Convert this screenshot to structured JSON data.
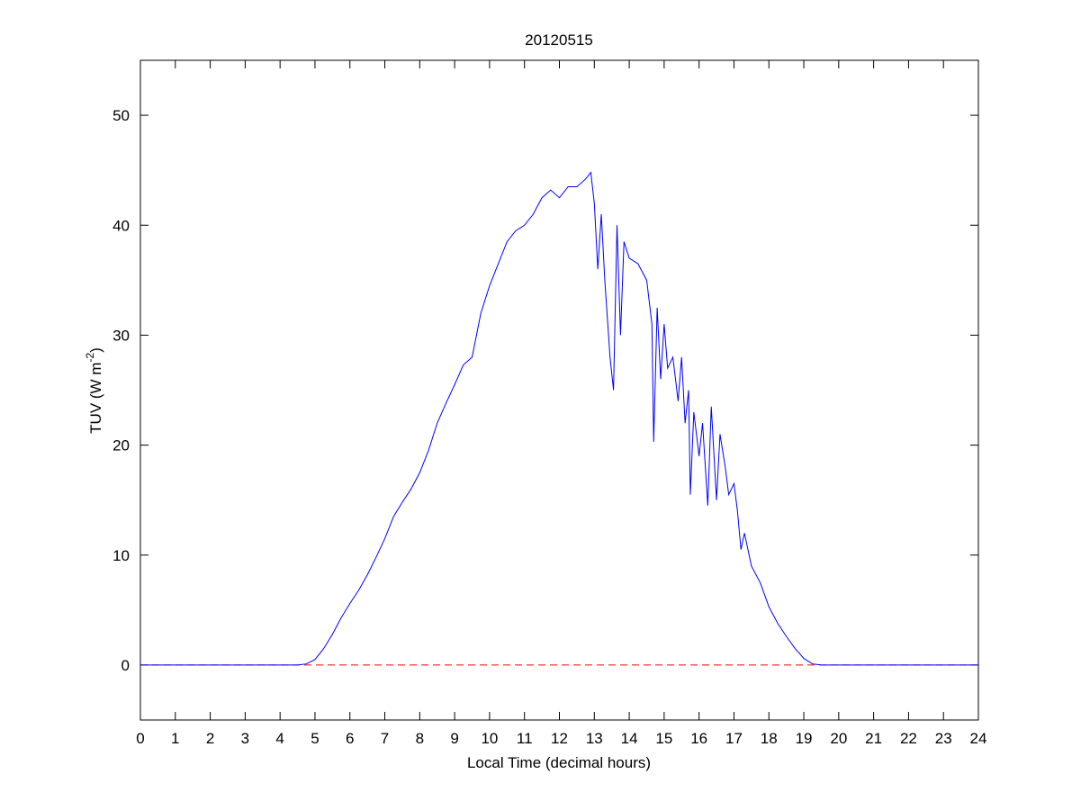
{
  "chart_data": {
    "type": "line",
    "title": "20120515",
    "x_label": "Local Time (decimal hours)",
    "y_label": [
      "TUV (W m",
      "-2",
      ")"
    ],
    "xlim": [
      0,
      24
    ],
    "xticks": [
      0,
      1,
      2,
      3,
      4,
      5,
      6,
      7,
      8,
      9,
      10,
      11,
      12,
      13,
      14,
      15,
      16,
      17,
      18,
      19,
      20,
      21,
      22,
      23,
      24
    ],
    "ylim": [
      -5,
      55
    ],
    "yticks": [
      0,
      10,
      20,
      30,
      40,
      50
    ],
    "grid": false,
    "hlines": [
      {
        "value": 0,
        "color": "#ff0000",
        "dashed": true
      }
    ],
    "series": [
      {
        "color": "#0000ff",
        "x": [
          0,
          1,
          2,
          3,
          4,
          4.5,
          4.75,
          5,
          5.25,
          5.5,
          5.75,
          6,
          6.25,
          6.5,
          6.75,
          7,
          7.25,
          7.5,
          7.75,
          8,
          8.25,
          8.5,
          8.75,
          9,
          9.25,
          9.5,
          9.75,
          10,
          10.25,
          10.5,
          10.75,
          11,
          11.25,
          11.5,
          11.75,
          12,
          12.25,
          12.5,
          12.75,
          12.9,
          13,
          13.1,
          13.2,
          13.3,
          13.45,
          13.55,
          13.65,
          13.75,
          13.85,
          14,
          14.25,
          14.5,
          14.65,
          14.7,
          14.8,
          14.9,
          15,
          15.1,
          15.25,
          15.4,
          15.5,
          15.6,
          15.7,
          15.75,
          15.85,
          16,
          16.1,
          16.25,
          16.35,
          16.5,
          16.6,
          16.75,
          16.85,
          17,
          17.1,
          17.2,
          17.3,
          17.5,
          17.75,
          18,
          18.25,
          18.5,
          18.75,
          19,
          19.25,
          19.5,
          20,
          21,
          22,
          23,
          24
        ],
        "values": [
          0,
          0,
          0,
          0,
          0,
          0,
          0.1,
          0.5,
          1.5,
          2.8,
          4.3,
          5.6,
          6.8,
          8.2,
          9.8,
          11.5,
          13.5,
          14.8,
          16,
          17.5,
          19.5,
          22,
          23.8,
          25.5,
          27.3,
          28,
          32,
          34.5,
          36.5,
          38.5,
          39.5,
          40,
          41,
          42.5,
          43.2,
          42.5,
          43.5,
          43.5,
          44.2,
          44.8,
          42,
          36,
          41,
          35,
          28,
          25,
          40,
          30,
          38.5,
          37,
          36.5,
          35,
          31,
          20.3,
          32.5,
          26,
          31,
          27,
          28,
          24,
          28,
          22,
          25,
          15.5,
          23,
          19,
          22,
          14.5,
          23.5,
          15,
          21,
          18,
          15.5,
          16.5,
          14,
          10.5,
          12,
          9,
          7.5,
          5.3,
          3.8,
          2.6,
          1.5,
          0.6,
          0.1,
          0,
          0,
          0,
          0,
          0,
          0
        ]
      }
    ]
  }
}
